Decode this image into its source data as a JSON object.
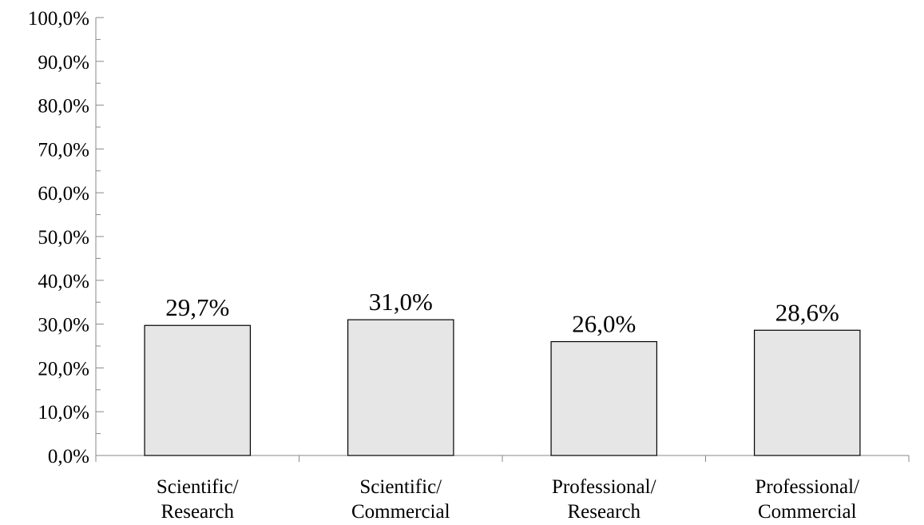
{
  "chart_data": {
    "type": "bar",
    "categories": [
      [
        "Scientific/",
        "Research"
      ],
      [
        "Scientific/",
        "Commercial"
      ],
      [
        "Professional/",
        "Research"
      ],
      [
        "Professional/",
        "Commercial"
      ]
    ],
    "values": [
      29.7,
      31.0,
      26.0,
      28.6
    ],
    "data_labels": [
      "29,7%",
      "31,0%",
      "26,0%",
      "28,6%"
    ],
    "ylim": [
      0,
      100
    ],
    "y_major_step": 10,
    "y_minor_step": 5,
    "y_tick_labels": [
      "0,0%",
      "10,0%",
      "20,0%",
      "30,0%",
      "40,0%",
      "50,0%",
      "60,0%",
      "70,0%",
      "80,0%",
      "90,0%",
      "100,0%"
    ],
    "grid": false,
    "legend": "none",
    "bar_fill": "#e6e6e6",
    "bar_stroke": "#000000",
    "axis_color": "#888888"
  }
}
